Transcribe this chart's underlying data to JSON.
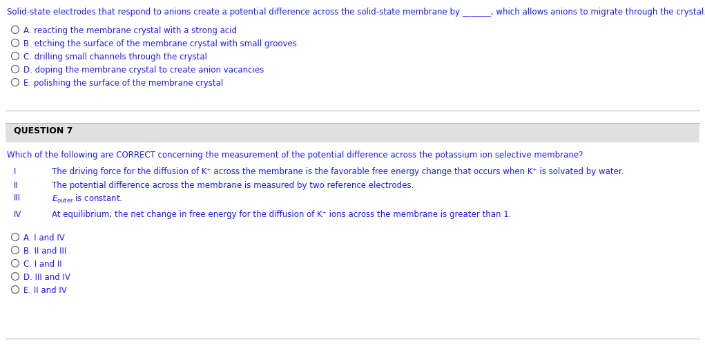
{
  "bg_color": "#ffffff",
  "blue": "#1a1aff",
  "black": "#000000",
  "gray_line": "#cccccc",
  "section_bg": "#e8e8e8",
  "q1_stem": "Solid-state electrodes that respond to anions create a potential difference across the solid-state membrane by _______, which allows anions to migrate through the crystal.",
  "q1_options": [
    "A. reacting the membrane crystal with a strong acid",
    "B. etching the surface of the membrane crystal with small grooves",
    "C. drilling small channels through the crystal",
    "D. doping the membrane crystal to create anion vacancies",
    "E. polishing the surface of the membrane crystal"
  ],
  "q2_label": "QUESTION 7",
  "q2_stem": "Which of the following are CORRECT concerning the measurement of the potential difference across the potassium ion selective membrane?",
  "q2_options": [
    "A. I and IV",
    "B. II and III",
    "C. I and II",
    "D. III and IV",
    "E. II and IV"
  ],
  "font_size": 8.5,
  "dpi": 100,
  "fig_w": 10.21,
  "fig_h": 5.08
}
